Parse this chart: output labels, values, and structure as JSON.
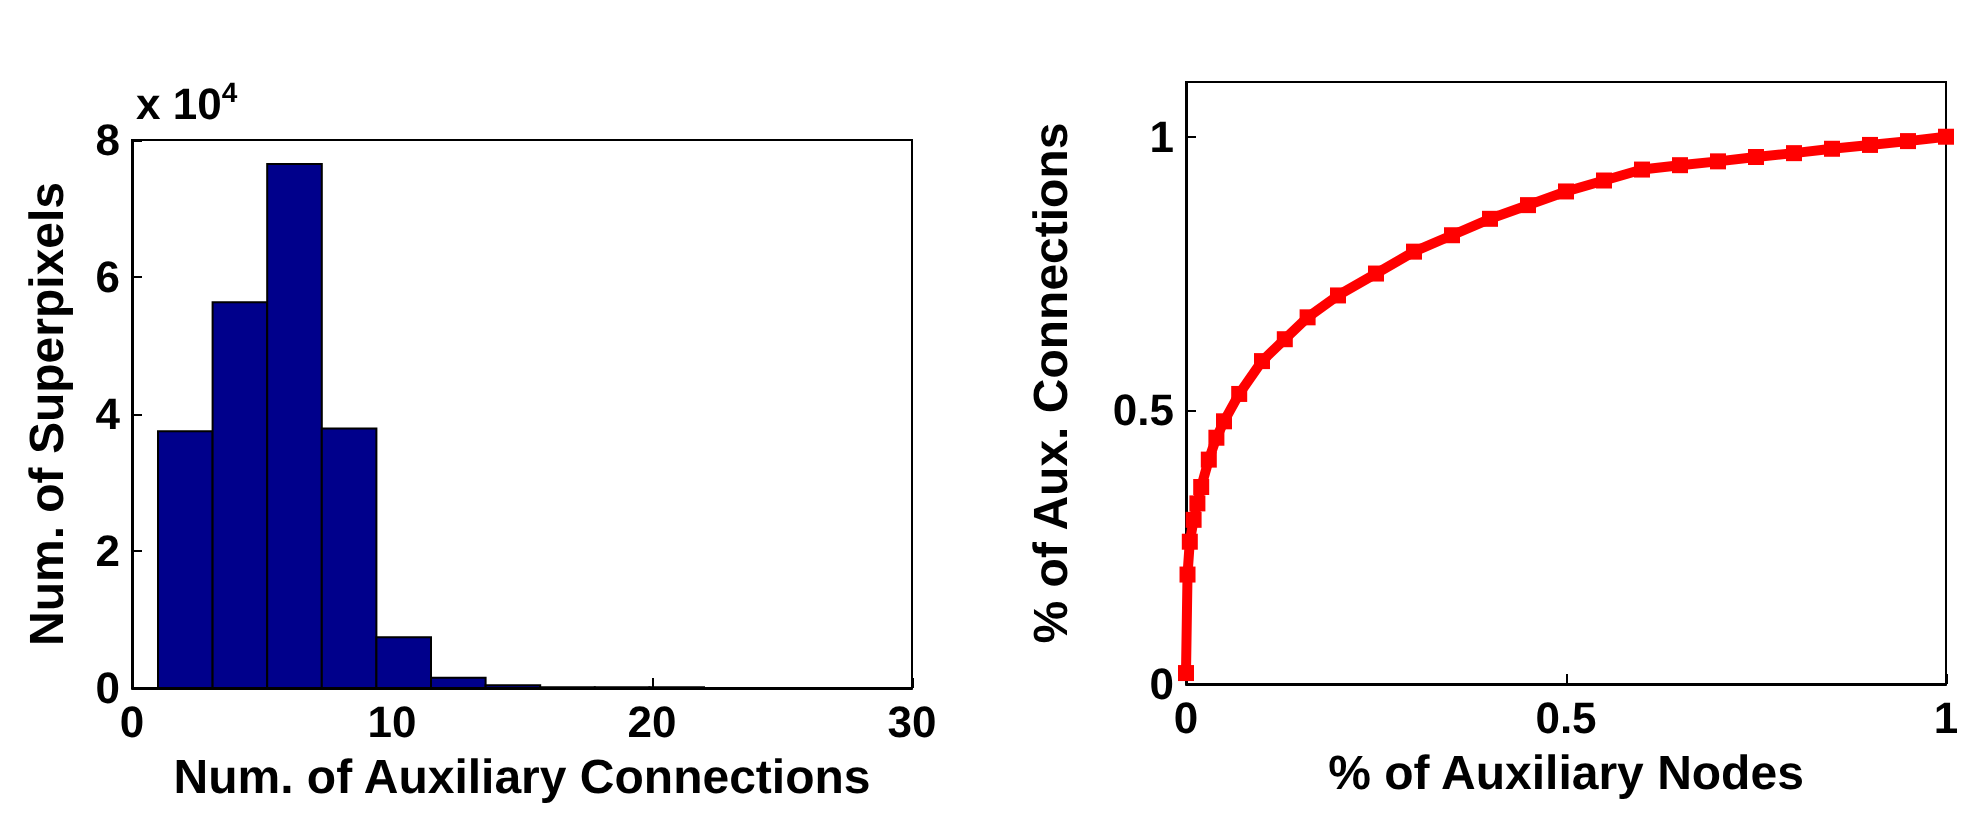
{
  "chart_data": [
    {
      "type": "histogram",
      "xlabel": "Num. of Auxiliary Connections",
      "ylabel": "Num. of Superpixels",
      "annotations": [
        "x 10$^{4}$"
      ],
      "bins": [
        1,
        3.1,
        5.2,
        7.3,
        9.4,
        11.5,
        13.6,
        15.7,
        17.8,
        19.9,
        22
      ],
      "values": [
        3.75,
        5.63,
        7.65,
        3.79,
        0.74,
        0.15,
        0.04,
        0.01,
        0.01,
        0.01
      ],
      "color": "#00008b",
      "xlim": [
        0,
        30
      ],
      "xticks": [
        0,
        10,
        20,
        30
      ],
      "ylim": [
        0,
        8
      ],
      "yticks": [
        0,
        2,
        4,
        6,
        8
      ],
      "grid": false
    },
    {
      "type": "line",
      "xlabel": "% of Auxiliary Nodes",
      "ylabel": "% of Aux. Connections",
      "x": [
        0,
        0.002,
        0.005,
        0.01,
        0.015,
        0.02,
        0.03,
        0.04,
        0.05,
        0.07,
        0.1,
        0.13,
        0.16,
        0.2,
        0.25,
        0.3,
        0.35,
        0.4,
        0.45,
        0.5,
        0.55,
        0.6,
        0.65,
        0.7,
        0.75,
        0.8,
        0.85,
        0.9,
        0.95,
        1
      ],
      "values": [
        0.02,
        0.2,
        0.26,
        0.3,
        0.33,
        0.36,
        0.41,
        0.45,
        0.48,
        0.53,
        0.59,
        0.63,
        0.67,
        0.71,
        0.75,
        0.79,
        0.82,
        0.85,
        0.875,
        0.9,
        0.92,
        0.94,
        0.948,
        0.955,
        0.963,
        0.97,
        0.978,
        0.985,
        0.992,
        1.0
      ],
      "color": "#ff0000",
      "marker": "square",
      "line_style": "solid",
      "xlim": [
        0,
        1
      ],
      "xticks": [
        0,
        0.5,
        1
      ],
      "ylim": [
        0,
        1.1
      ],
      "yticks": [
        0,
        0.5,
        1
      ],
      "grid": false
    }
  ]
}
